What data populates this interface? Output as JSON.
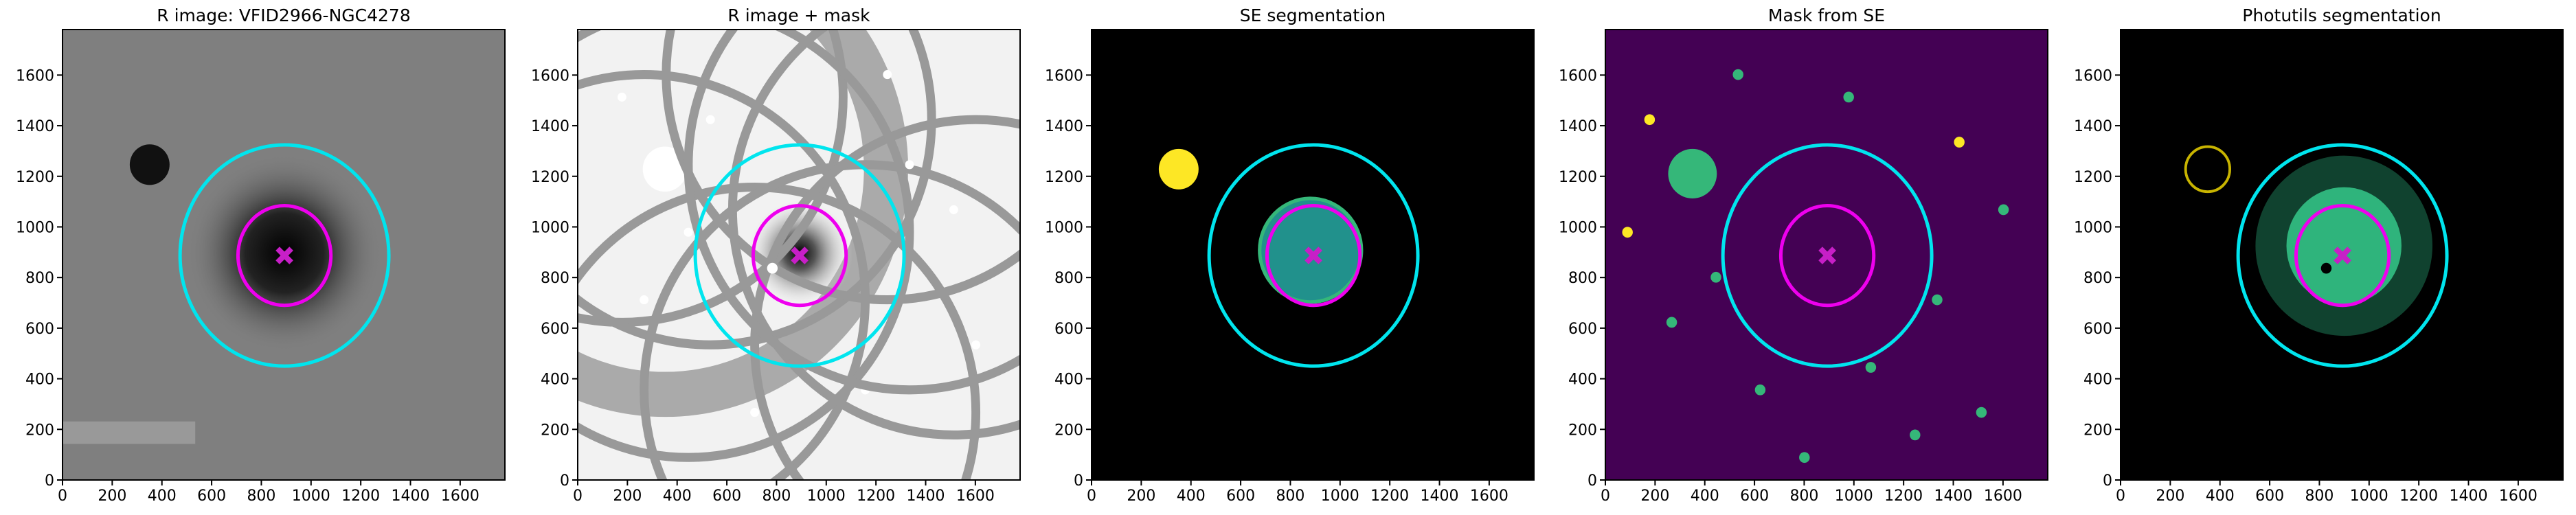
{
  "chart_data": [
    {
      "type": "image",
      "title": "R image: VFID2966-NGC4278",
      "background": "#7f7f7f",
      "xlim": [
        0,
        1780
      ],
      "ylim": [
        0,
        1780
      ],
      "xticks": [
        0,
        200,
        400,
        600,
        800,
        1000,
        1200,
        1400,
        1600
      ],
      "yticks": [
        0,
        200,
        400,
        600,
        800,
        1000,
        1200,
        1400,
        1600
      ],
      "ellipses": [
        {
          "x": 893,
          "y": 887,
          "a": 420,
          "b": 437,
          "color": "#00e5ee"
        },
        {
          "x": 893,
          "y": 887,
          "a": 187,
          "b": 197,
          "color": "#ee00ee"
        }
      ],
      "marker": {
        "x": 893,
        "y": 887,
        "color": "#c71fc7"
      }
    },
    {
      "type": "image",
      "title": "R image + mask",
      "background": "#f2f2f2",
      "xlim": [
        0,
        1780
      ],
      "ylim": [
        0,
        1780
      ],
      "xticks": [
        0,
        200,
        400,
        600,
        800,
        1000,
        1200,
        1400,
        1600
      ],
      "yticks": [
        0,
        200,
        400,
        600,
        800,
        1000,
        1200,
        1400,
        1600
      ],
      "ellipses": [
        {
          "x": 893,
          "y": 887,
          "a": 420,
          "b": 437,
          "color": "#00e5ee"
        },
        {
          "x": 893,
          "y": 887,
          "a": 187,
          "b": 197,
          "color": "#ee00ee"
        }
      ],
      "marker": {
        "x": 893,
        "y": 887,
        "color": "#c71fc7"
      }
    },
    {
      "type": "image",
      "title": "SE segmentation",
      "background": "#000000",
      "xlim": [
        0,
        1780
      ],
      "ylim": [
        0,
        1780
      ],
      "xticks": [
        0,
        200,
        400,
        600,
        800,
        1000,
        1200,
        1400,
        1600
      ],
      "yticks": [
        0,
        200,
        400,
        600,
        800,
        1000,
        1200,
        1400,
        1600
      ],
      "ellipses": [
        {
          "x": 893,
          "y": 887,
          "a": 420,
          "b": 437,
          "color": "#00e5ee"
        },
        {
          "x": 893,
          "y": 887,
          "a": 187,
          "b": 197,
          "color": "#ee00ee"
        }
      ],
      "marker": {
        "x": 893,
        "y": 887,
        "color": "#c71fc7"
      }
    },
    {
      "type": "image",
      "title": "Mask from SE",
      "background": "#440154",
      "xlim": [
        0,
        1780
      ],
      "ylim": [
        0,
        1780
      ],
      "xticks": [
        0,
        200,
        400,
        600,
        800,
        1000,
        1200,
        1400,
        1600
      ],
      "yticks": [
        0,
        200,
        400,
        600,
        800,
        1000,
        1200,
        1400,
        1600
      ],
      "ellipses": [
        {
          "x": 893,
          "y": 887,
          "a": 420,
          "b": 437,
          "color": "#00e5ee"
        },
        {
          "x": 893,
          "y": 887,
          "a": 187,
          "b": 197,
          "color": "#ee00ee"
        }
      ],
      "marker": {
        "x": 893,
        "y": 887,
        "color": "#c71fc7"
      }
    },
    {
      "type": "image",
      "title": "Photutils segmentation",
      "background": "#000000",
      "xlim": [
        0,
        1780
      ],
      "ylim": [
        0,
        1780
      ],
      "xticks": [
        0,
        200,
        400,
        600,
        800,
        1000,
        1200,
        1400,
        1600
      ],
      "yticks": [
        0,
        200,
        400,
        600,
        800,
        1000,
        1200,
        1400,
        1600
      ],
      "ellipses": [
        {
          "x": 893,
          "y": 887,
          "a": 420,
          "b": 437,
          "color": "#00e5ee"
        },
        {
          "x": 893,
          "y": 887,
          "a": 187,
          "b": 197,
          "color": "#ee00ee"
        }
      ],
      "marker": {
        "x": 893,
        "y": 887,
        "color": "#c71fc7"
      }
    }
  ]
}
